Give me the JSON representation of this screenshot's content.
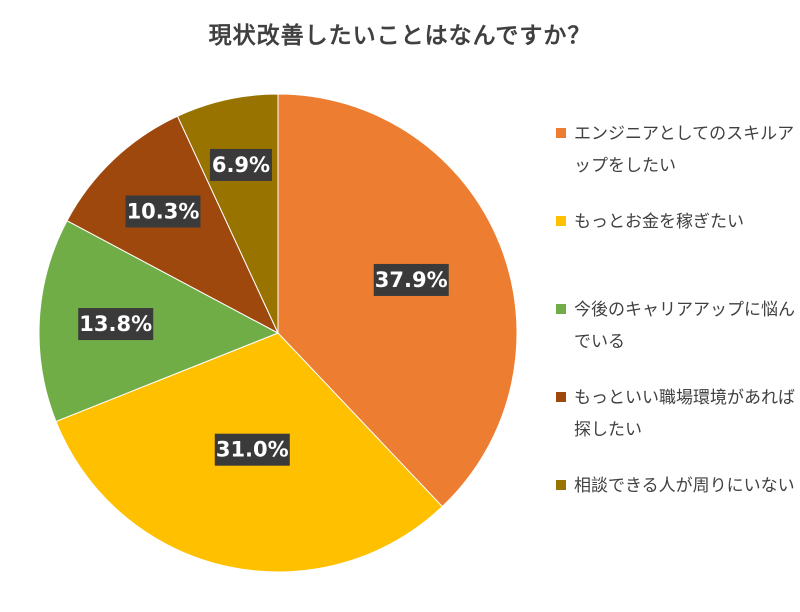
{
  "chart_data": {
    "type": "pie",
    "title": "現状改善したいことはなんですか？",
    "slices": [
      {
        "name": "エンジニアとしてのスキルアップをしたい",
        "value": 37.9,
        "label": "37.9%",
        "color": "#ED7D31"
      },
      {
        "name": "もっとお金を稼ぎたい",
        "value": 31.0,
        "label": "31.0%",
        "color": "#FFC000"
      },
      {
        "name": "今後のキャリアアップに悩んでいる",
        "value": 13.8,
        "label": "13.8%",
        "color": "#70AD47"
      },
      {
        "name": "もっといい職場環境があれば探したい",
        "value": 10.3,
        "label": "10.3%",
        "color": "#9E480E"
      },
      {
        "name": "相談できる人が周りにいない",
        "value": 6.9,
        "label": "6.9%",
        "color": "#997300"
      }
    ],
    "start": "12 o'clock",
    "direction": "clockwise",
    "legend": "right"
  }
}
